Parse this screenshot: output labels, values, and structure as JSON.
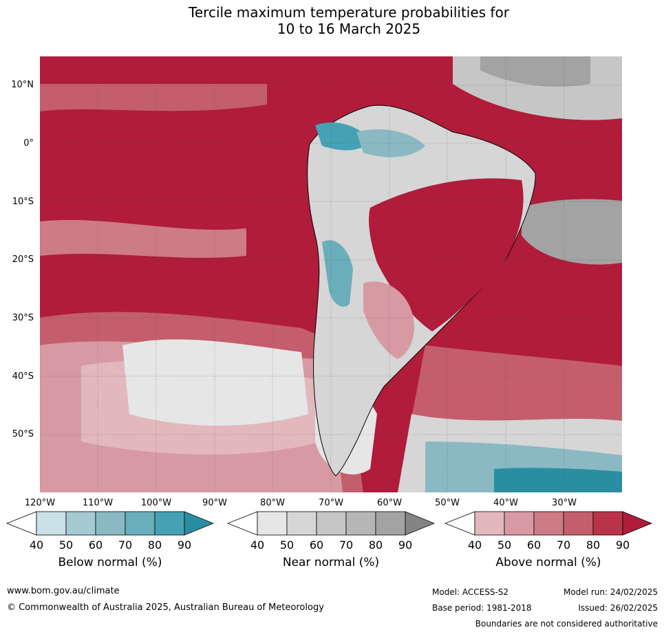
{
  "title_line1": "Tercile maximum temperature probabilities for",
  "title_line2": "10 to 16 March 2025",
  "lat_labels": [
    "10°N",
    "0°",
    "10°S",
    "20°S",
    "30°S",
    "40°S",
    "50°S"
  ],
  "lon_labels": [
    "120°W",
    "110°W",
    "100°W",
    "90°W",
    "80°W",
    "70°W",
    "60°W",
    "50°W",
    "40°W",
    "30°W"
  ],
  "colorbars": [
    {
      "label": "Below normal (%)",
      "ticks": [
        "40",
        "50",
        "60",
        "70",
        "80",
        "90"
      ],
      "colors": [
        "#c9e2e8",
        "#a5cad2",
        "#8ab9c3",
        "#6aaebb",
        "#45a2b4",
        "#2a8ea3"
      ]
    },
    {
      "label": "Near normal (%)",
      "ticks": [
        "40",
        "50",
        "60",
        "70",
        "80",
        "90"
      ],
      "colors": [
        "#e6e6e6",
        "#d6d6d6",
        "#c6c6c6",
        "#b6b6b6",
        "#a3a3a3",
        "#848484"
      ]
    },
    {
      "label": "Above normal (%)",
      "ticks": [
        "40",
        "50",
        "60",
        "70",
        "80",
        "90"
      ],
      "colors": [
        "#e3b8bd",
        "#d79aa2",
        "#cd7b86",
        "#c45e6c",
        "#b93448",
        "#b01c3a"
      ]
    }
  ],
  "footer": {
    "website": "www.bom.gov.au/climate",
    "copyright": "© Commonwealth of Australia 2025, Australian Bureau of Meteorology",
    "model": "Model: ACCESS-S2",
    "model_run": "Model run: 24/02/2025",
    "base_period": "Base period: 1981-2018",
    "issued": "Issued: 26/02/2025",
    "disclaimer": "Boundaries are not considered authoritative"
  }
}
